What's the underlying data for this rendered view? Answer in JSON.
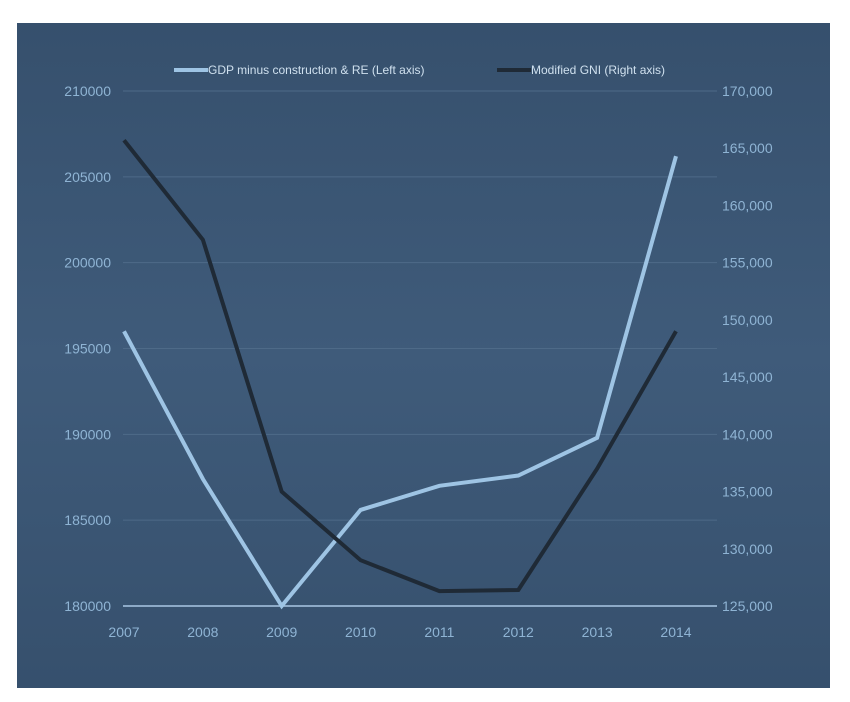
{
  "chart_data": {
    "type": "line",
    "title": "",
    "xlabel": "",
    "ylabel": "",
    "categories": [
      "2007",
      "2008",
      "2009",
      "2010",
      "2011",
      "2012",
      "2013",
      "2014"
    ],
    "series": [
      {
        "name": "GDP minus construction & RE (Left axis)",
        "axis": "left",
        "color": "#9ec4e4",
        "values": [
          196000,
          187400,
          180000,
          185600,
          187000,
          187600,
          189800,
          206200
        ]
      },
      {
        "name": "Modified GNI (Right axis)",
        "axis": "right",
        "color": "#1f2a36",
        "values": [
          165700,
          157000,
          135000,
          129000,
          126300,
          126400,
          137000,
          149000
        ]
      }
    ],
    "y_left": {
      "ylim": [
        180000,
        210000
      ],
      "ticks": [
        "180000",
        "185000",
        "190000",
        "195000",
        "200000",
        "205000",
        "210000"
      ]
    },
    "y_right": {
      "ylim": [
        125000,
        170000
      ],
      "ticks": [
        "125,000",
        "130,000",
        "135,000",
        "140,000",
        "145,000",
        "150,000",
        "155,000",
        "160,000",
        "165,000",
        "170,000"
      ]
    },
    "grid": true,
    "legend_position": "top-center"
  },
  "colors": {
    "panel_background": "#3c5876",
    "gridline": "#4e6a88",
    "baseline": "#a9c8e4",
    "tick_text": "#8fb4d4"
  }
}
